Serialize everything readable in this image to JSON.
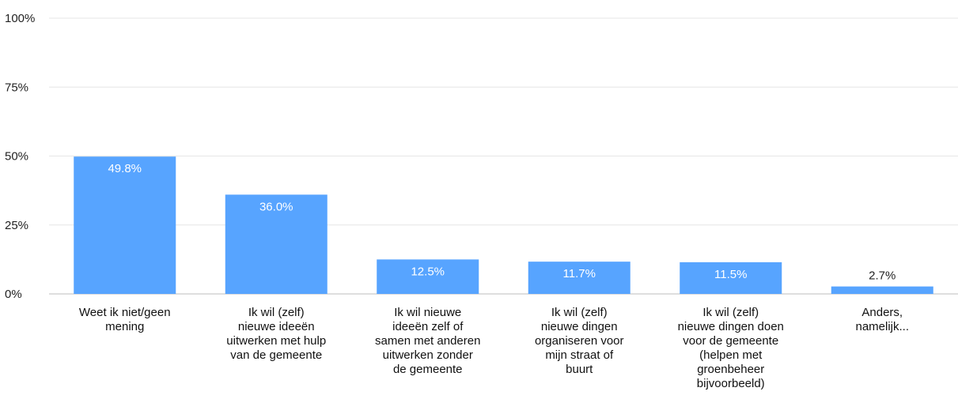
{
  "chart_data": {
    "type": "bar",
    "title": "",
    "xlabel": "",
    "ylabel": "",
    "ylim": [
      0,
      100
    ],
    "yticks": [
      0,
      25,
      50,
      75,
      100
    ],
    "ytick_labels": [
      "0%",
      "25%",
      "50%",
      "75%",
      "100%"
    ],
    "grid": true,
    "legend": "none",
    "categories": [
      "Weet ik niet/geen mening",
      "Ik wil (zelf) nieuwe ideeën uitwerken met hulp van de gemeente",
      "Ik wil nieuwe ideeën zelf of samen met anderen uitwerken zonder de gemeente",
      "Ik wil (zelf) nieuwe dingen organiseren voor mijn straat of buurt",
      "Ik wil (zelf) nieuwe dingen doen voor de gemeente (helpen met groenbeheer bijvoorbeeld)",
      "Anders, namelijk..."
    ],
    "values": [
      49.8,
      36.0,
      12.5,
      11.7,
      11.5,
      2.7
    ],
    "data_labels": [
      "49.8%",
      "36.0%",
      "12.5%",
      "11.7%",
      "11.5%",
      "2.7%"
    ],
    "colors": {
      "bar": "#57a4ff",
      "gridline": "#e6e6e6",
      "baseline": "#bdbdbd",
      "label_inside": "#ffffff",
      "label_outside": "#222222"
    }
  }
}
